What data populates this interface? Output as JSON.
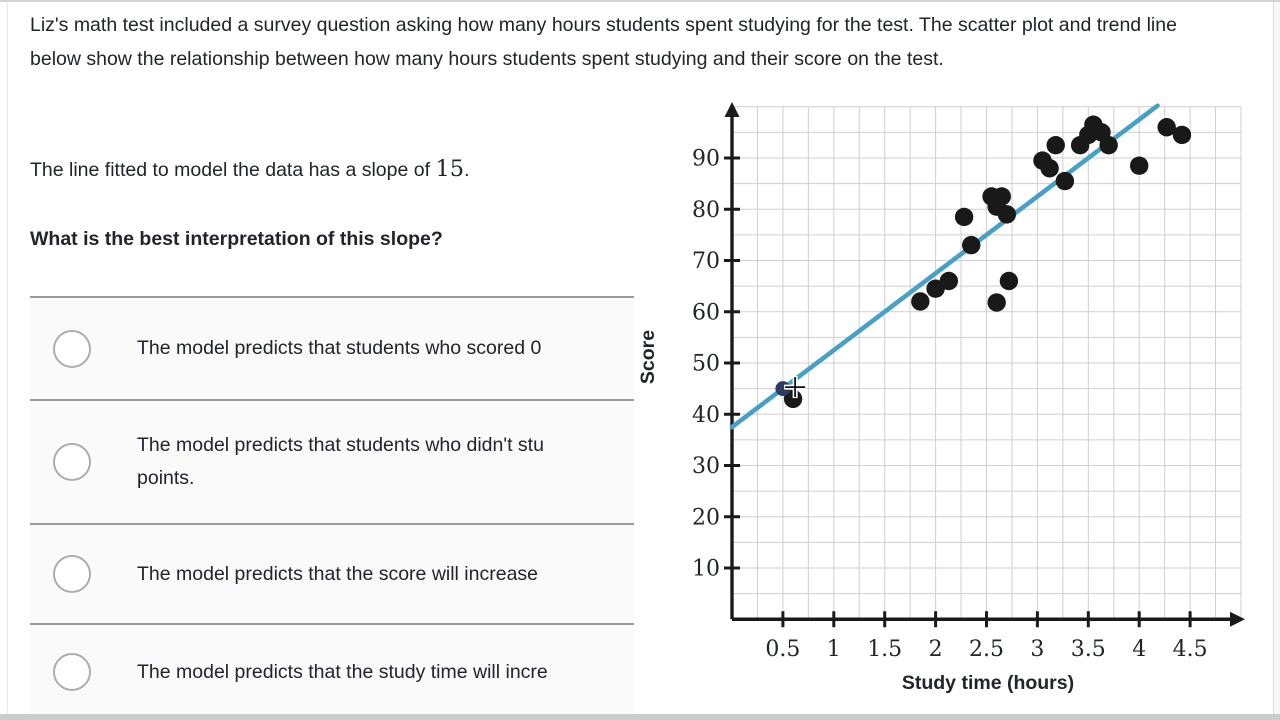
{
  "question": {
    "paragraph": "Liz's math test included a survey question asking how many hours students spent studying for the test. The scatter plot and trend line below show the relationship between how many hours students spent studying and their score on the test.",
    "slope_prefix": "The line fitted to model the data has a slope of ",
    "slope_value": "15",
    "slope_suffix": ".",
    "prompt": "What is the best interpretation of this slope?"
  },
  "options": [
    {
      "lines": [
        "The model predicts that students who scored 0"
      ]
    },
    {
      "lines": [
        "The model predicts that students who didn't stu",
        "points."
      ]
    },
    {
      "lines": [
        "The model predicts that the score will increase"
      ]
    },
    {
      "lines": [
        "The model predicts that the study time will incre"
      ]
    }
  ],
  "chart_data": {
    "type": "scatter",
    "xlabel": "Study time (hours)",
    "ylabel": "Score",
    "x_ticks": [
      0.5,
      1,
      1.5,
      2,
      2.5,
      3,
      3.5,
      4,
      4.5
    ],
    "y_ticks": [
      10,
      20,
      30,
      40,
      50,
      60,
      70,
      80,
      90
    ],
    "xlim": [
      0,
      5.0
    ],
    "ylim": [
      0,
      100
    ],
    "grid": {
      "x_step": 0.25,
      "y_step": 5,
      "on": true
    },
    "points": [
      [
        0.6,
        43
      ],
      [
        1.85,
        62
      ],
      [
        2.0,
        64.5
      ],
      [
        2.13,
        66
      ],
      [
        2.28,
        78.5
      ],
      [
        2.35,
        73
      ],
      [
        2.55,
        82.5
      ],
      [
        2.65,
        82.5
      ],
      [
        2.6,
        80.5
      ],
      [
        2.7,
        79
      ],
      [
        2.6,
        61.8
      ],
      [
        2.72,
        66
      ],
      [
        3.05,
        89.5
      ],
      [
        3.12,
        88
      ],
      [
        3.18,
        92.5
      ],
      [
        3.27,
        85.5
      ],
      [
        3.42,
        92.5
      ],
      [
        3.5,
        94.5
      ],
      [
        3.55,
        96.5
      ],
      [
        3.63,
        95
      ],
      [
        3.7,
        92.5
      ],
      [
        4.0,
        88.5
      ],
      [
        4.27,
        96
      ],
      [
        4.42,
        94.5
      ]
    ],
    "interactive_point": [
      0.5,
      45
    ],
    "cursor": [
      0.62,
      45.3
    ],
    "trend_line": {
      "slope": 15,
      "intercept": 37.5,
      "x_start": 0,
      "x_end": 4.18
    },
    "colors": {
      "trend": "#4aa0c4",
      "point": "#191919",
      "interactive_point": "#2b3c5e",
      "grid": "#cfcfcf",
      "axis": "#1a1a1a",
      "text": "#21242c"
    }
  }
}
